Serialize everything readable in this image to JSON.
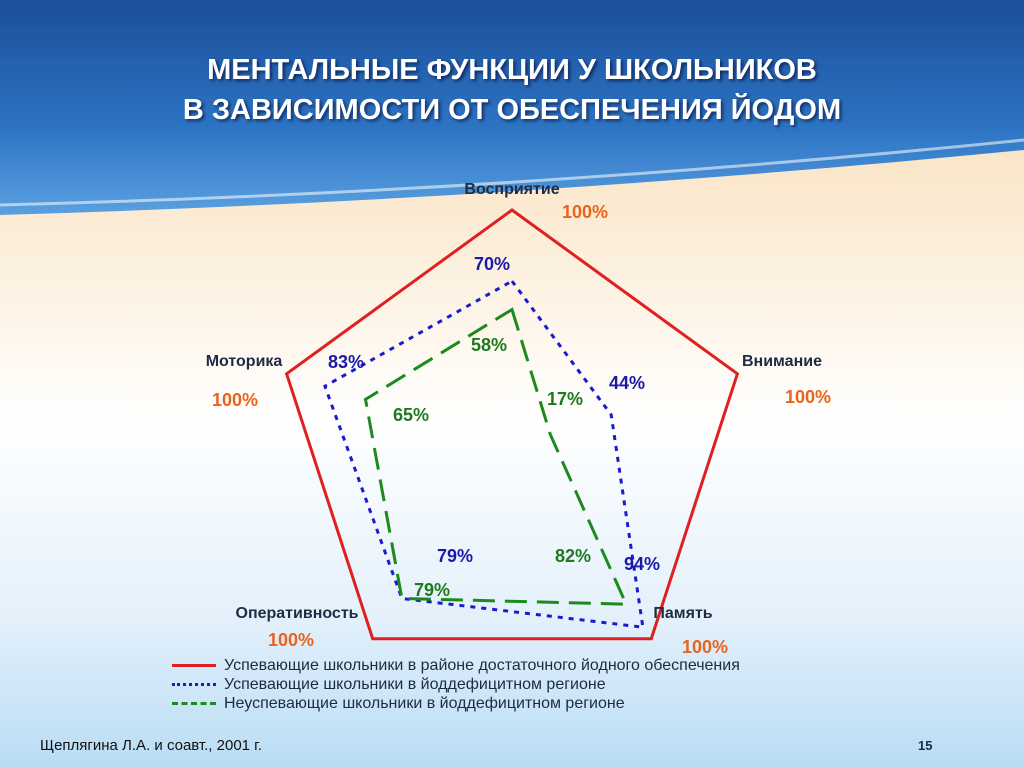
{
  "slide": {
    "title_line1": "МЕНТАЛЬНЫЕ ФУНКЦИИ У ШКОЛЬНИКОВ",
    "title_line2": "В ЗАВИСИМОСТИ ОТ ОБЕСПЕЧЕНИЯ ЙОДОМ",
    "source": "Щеплягина Л.А. и соавт., 2001 г.",
    "page_number": "15"
  },
  "colors": {
    "reference": "#e02020",
    "iodine_deficient_successful": "#1a1ad0",
    "iodine_deficient_unsuccessful": "#1d8a1d",
    "full_label": "#e8641c",
    "banner": "#1a5fae"
  },
  "chart_data": {
    "type": "radar",
    "axes": [
      "Восприятие",
      "Внимание",
      "Память",
      "Оперативность",
      "Моторика"
    ],
    "max": 100,
    "series": [
      {
        "name": "Успевающие школьники в районе достаточного йодного обеспечения",
        "values": [
          100,
          100,
          100,
          100,
          100
        ],
        "labels": [
          "100%",
          "100%",
          "100%",
          "100%",
          "100%"
        ],
        "style": "solid"
      },
      {
        "name": "Успевающие школьники в йоддефицитном регионе",
        "values": [
          70,
          44,
          94,
          79,
          83
        ],
        "labels": [
          "70%",
          "44%",
          "94%",
          "79%",
          "83%"
        ],
        "style": "dotted"
      },
      {
        "name": "Неуспевающие школьники в йоддефицитном регионе",
        "values": [
          58,
          17,
          82,
          79,
          65
        ],
        "labels": [
          "58%",
          "17%",
          "82%",
          "79%",
          "65%"
        ],
        "style": "dashed"
      }
    ],
    "legend_position": "bottom"
  }
}
